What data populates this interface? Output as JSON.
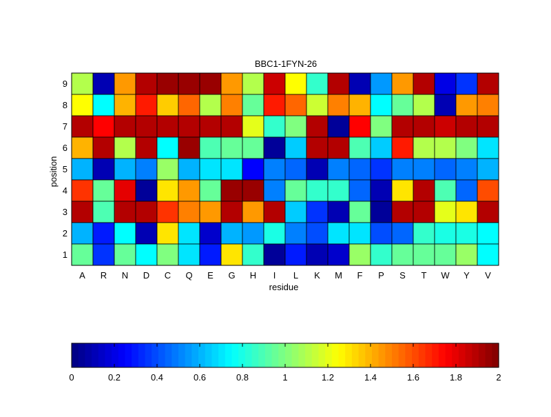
{
  "chart_data": {
    "type": "heatmap",
    "title": "BBC1-1FYN-26",
    "xlabel": "residue",
    "ylabel": "position",
    "x_categories": [
      "A",
      "R",
      "N",
      "D",
      "C",
      "Q",
      "E",
      "G",
      "H",
      "I",
      "L",
      "K",
      "M",
      "F",
      "P",
      "S",
      "T",
      "W",
      "Y",
      "V"
    ],
    "y_categories": [
      "9",
      "8",
      "7",
      "6",
      "5",
      "4",
      "3",
      "2",
      "1"
    ],
    "values": [
      [
        1.1,
        0.1,
        1.45,
        1.9,
        1.95,
        1.95,
        1.95,
        1.45,
        1.1,
        1.85,
        1.25,
        0.85,
        1.9,
        0.1,
        0.55,
        1.45,
        1.9,
        0.2,
        0.35,
        1.9
      ],
      [
        1.25,
        0.75,
        1.4,
        1.7,
        1.35,
        1.55,
        1.1,
        1.5,
        0.95,
        1.7,
        1.55,
        1.15,
        1.5,
        1.4,
        0.75,
        0.95,
        1.1,
        0.1,
        1.45,
        1.5
      ],
      [
        1.9,
        1.75,
        1.9,
        1.9,
        1.9,
        1.9,
        1.9,
        1.9,
        1.2,
        0.85,
        1.0,
        1.9,
        0.05,
        1.75,
        1.0,
        1.9,
        1.9,
        1.85,
        1.9,
        1.9
      ],
      [
        1.4,
        1.9,
        1.1,
        1.9,
        0.75,
        1.95,
        0.9,
        0.95,
        0.95,
        0.05,
        0.65,
        1.9,
        1.9,
        0.9,
        0.65,
        1.7,
        1.1,
        1.1,
        1.0,
        0.7
      ],
      [
        0.6,
        0.1,
        0.6,
        0.5,
        1.05,
        0.6,
        0.7,
        0.7,
        0.25,
        0.5,
        0.45,
        0.1,
        0.5,
        0.45,
        0.35,
        0.5,
        0.5,
        0.45,
        0.5,
        0.6
      ],
      [
        1.65,
        0.95,
        1.8,
        0.05,
        1.3,
        1.45,
        0.95,
        1.95,
        1.95,
        0.5,
        0.95,
        0.85,
        0.85,
        0.45,
        0.1,
        1.3,
        1.9,
        0.9,
        0.45,
        1.6
      ],
      [
        1.9,
        0.9,
        1.9,
        1.9,
        1.65,
        1.5,
        1.45,
        1.9,
        1.45,
        1.9,
        0.65,
        0.35,
        0.1,
        0.95,
        0.05,
        1.9,
        1.9,
        1.2,
        1.3,
        1.9
      ],
      [
        0.6,
        0.3,
        0.75,
        0.1,
        1.3,
        0.7,
        0.15,
        0.6,
        0.55,
        0.8,
        0.5,
        0.4,
        0.7,
        0.7,
        0.4,
        0.45,
        0.85,
        0.8,
        0.8,
        0.75
      ],
      [
        0.95,
        0.35,
        0.95,
        0.75,
        1.0,
        0.7,
        0.3,
        1.3,
        0.85,
        0.05,
        0.3,
        0.1,
        0.15,
        1.05,
        0.85,
        0.95,
        0.95,
        0.95,
        1.05,
        0.75
      ]
    ],
    "colormap": "jet",
    "vmin": 0,
    "vmax": 2,
    "grid": false,
    "colorbar": {
      "orientation": "horizontal",
      "placement": "bottom",
      "ticks": [
        0,
        0.2,
        0.4,
        0.6,
        0.8,
        1,
        1.2,
        1.4,
        1.6,
        1.8,
        2
      ],
      "tick_labels": [
        "0",
        "0.2",
        "0.4",
        "0.6",
        "0.8",
        "1",
        "1.2",
        "1.4",
        "1.6",
        "1.8",
        "2"
      ]
    }
  }
}
